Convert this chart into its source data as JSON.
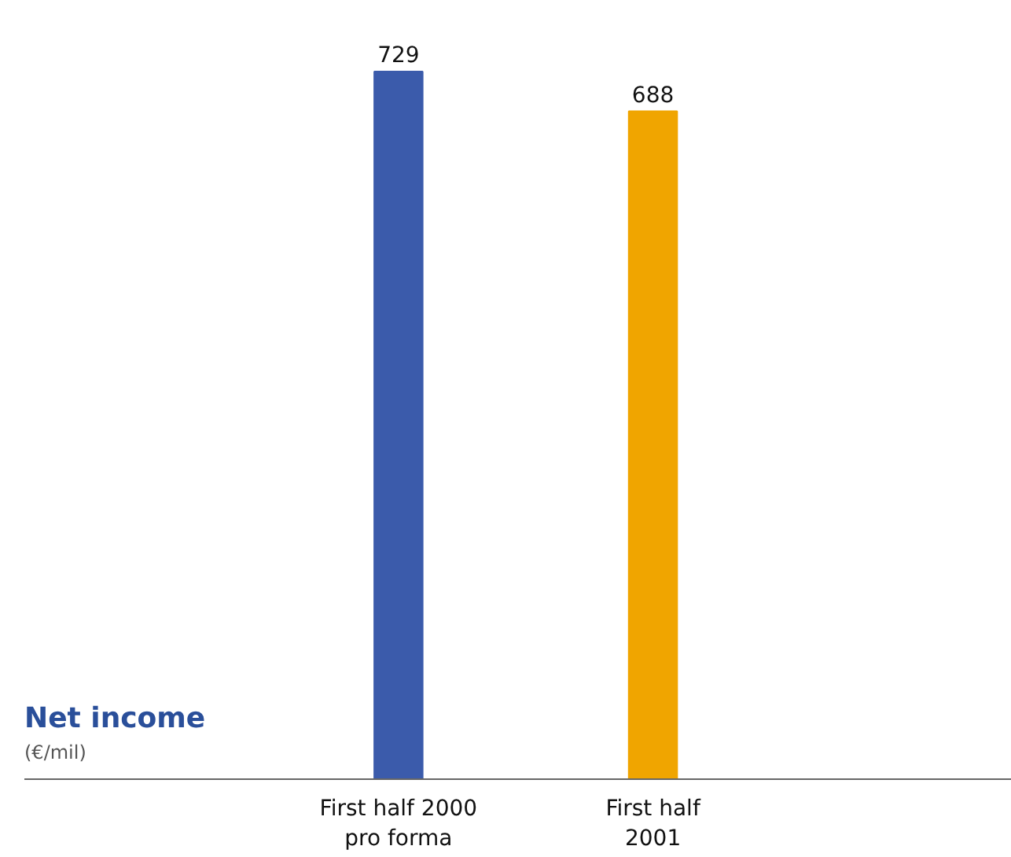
{
  "chart_data": {
    "type": "bar",
    "title": "Net income",
    "subtitle": "(€/mil)",
    "categories": [
      "First half 2000\npro forma",
      "First half\n2001"
    ],
    "values": [
      729,
      688
    ],
    "colors": [
      "#3b5bab",
      "#f0a500"
    ],
    "data_labels": true,
    "grid": false
  }
}
